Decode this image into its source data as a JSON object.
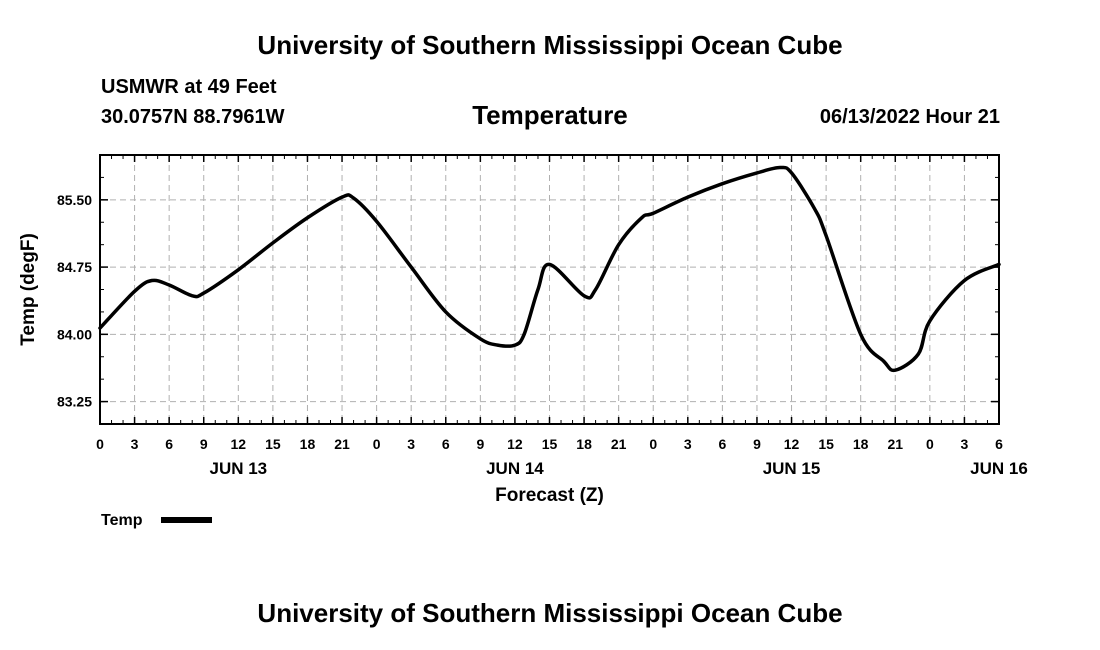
{
  "header": {
    "title": "University of Southern Mississippi Ocean Cube",
    "station": "USMWR at 49 Feet",
    "coords": "30.0757N  88.7961W",
    "chart_title": "Temperature",
    "datetime": "06/13/2022 Hour 21"
  },
  "footer": {
    "title": "University of Southern Mississippi Ocean Cube"
  },
  "chart_data": {
    "type": "line",
    "title": "Temperature",
    "xlabel": "Forecast (Z)",
    "ylabel": "Temp (degF)",
    "xlim": [
      0,
      78
    ],
    "ylim": [
      83.0,
      86.0
    ],
    "y_ticks": [
      83.25,
      84.0,
      84.75,
      85.5
    ],
    "y_tick_labels": [
      "83.25",
      "84.00",
      "84.75",
      "85.50"
    ],
    "x_ticks": [
      0,
      3,
      6,
      9,
      12,
      15,
      18,
      21,
      24,
      27,
      30,
      33,
      36,
      39,
      42,
      45,
      48,
      51,
      54,
      57,
      60,
      63,
      66,
      69,
      72,
      75,
      78
    ],
    "x_tick_labels": [
      "0",
      "3",
      "6",
      "9",
      "12",
      "15",
      "18",
      "21",
      "0",
      "3",
      "6",
      "9",
      "12",
      "15",
      "18",
      "21",
      "0",
      "3",
      "6",
      "9",
      "12",
      "15",
      "18",
      "21",
      "0",
      "3",
      "6"
    ],
    "day_labels": [
      {
        "hour": 12,
        "label": "JUN 13"
      },
      {
        "hour": 36,
        "label": "JUN 14"
      },
      {
        "hour": 60,
        "label": "JUN 15"
      },
      {
        "hour": 78,
        "label": "JUN 16"
      }
    ],
    "grid": true,
    "legend": "bottom-left",
    "series": [
      {
        "name": "Temp",
        "color": "#000000",
        "x": [
          0,
          3,
          4.5,
          6,
          8,
          9,
          12,
          15,
          18,
          21,
          22,
          24,
          27,
          30,
          33,
          34.5,
          36,
          36.8,
          38,
          39,
          42,
          43,
          45,
          47,
          48,
          51,
          54,
          57,
          59,
          60,
          62,
          63,
          66,
          68,
          69,
          71,
          72,
          75,
          78
        ],
        "y": [
          84.07,
          84.48,
          84.6,
          84.55,
          84.43,
          84.46,
          84.72,
          85.02,
          85.3,
          85.53,
          85.52,
          85.26,
          84.75,
          84.25,
          83.95,
          83.88,
          83.88,
          84.0,
          84.5,
          84.78,
          84.43,
          84.5,
          85.0,
          85.3,
          85.35,
          85.53,
          85.68,
          85.8,
          85.86,
          85.8,
          85.4,
          85.1,
          84.0,
          83.7,
          83.6,
          83.78,
          84.15,
          84.6,
          84.78
        ]
      }
    ]
  }
}
